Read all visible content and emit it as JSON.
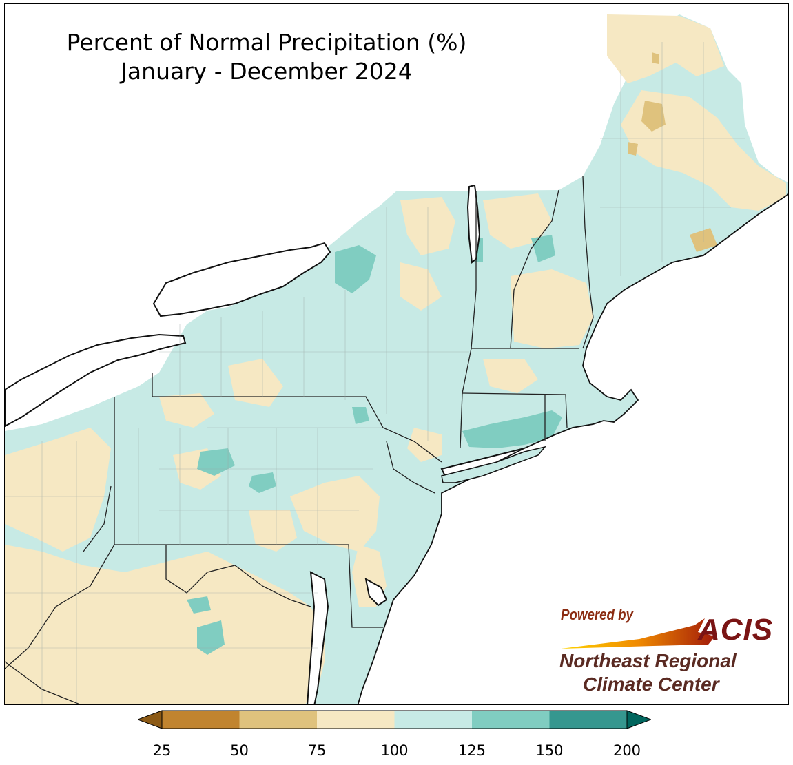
{
  "title": {
    "line1": "Percent of Normal Precipitation (%)",
    "line2": "January - December 2024"
  },
  "legend": {
    "ticks": [
      "25",
      "50",
      "75",
      "100",
      "125",
      "150",
      "200"
    ],
    "bins": [
      {
        "range": "<25",
        "color": "#8c5a16"
      },
      {
        "range": "25-50",
        "color": "#c1842f"
      },
      {
        "range": "50-75",
        "color": "#dfc27d"
      },
      {
        "range": "75-100",
        "color": "#f6e8c3"
      },
      {
        "range": "100-125",
        "color": "#c7eae5"
      },
      {
        "range": "125-150",
        "color": "#80cdc1"
      },
      {
        "range": "150-200",
        "color": "#35978f"
      },
      {
        "range": ">200",
        "color": "#01665e"
      }
    ]
  },
  "logo": {
    "powered_by": "Powered by",
    "acis": "ACIS",
    "org_line1": "Northeast Regional",
    "org_line2": "Climate Center"
  },
  "map_colors": {
    "land_above": "#c7eae5",
    "land_below": "#f6e8c3",
    "much_above": "#80cdc1",
    "well_below": "#dfc27d",
    "water": "#ffffff",
    "boundary": "#222222",
    "county": "#9aa7a4"
  }
}
